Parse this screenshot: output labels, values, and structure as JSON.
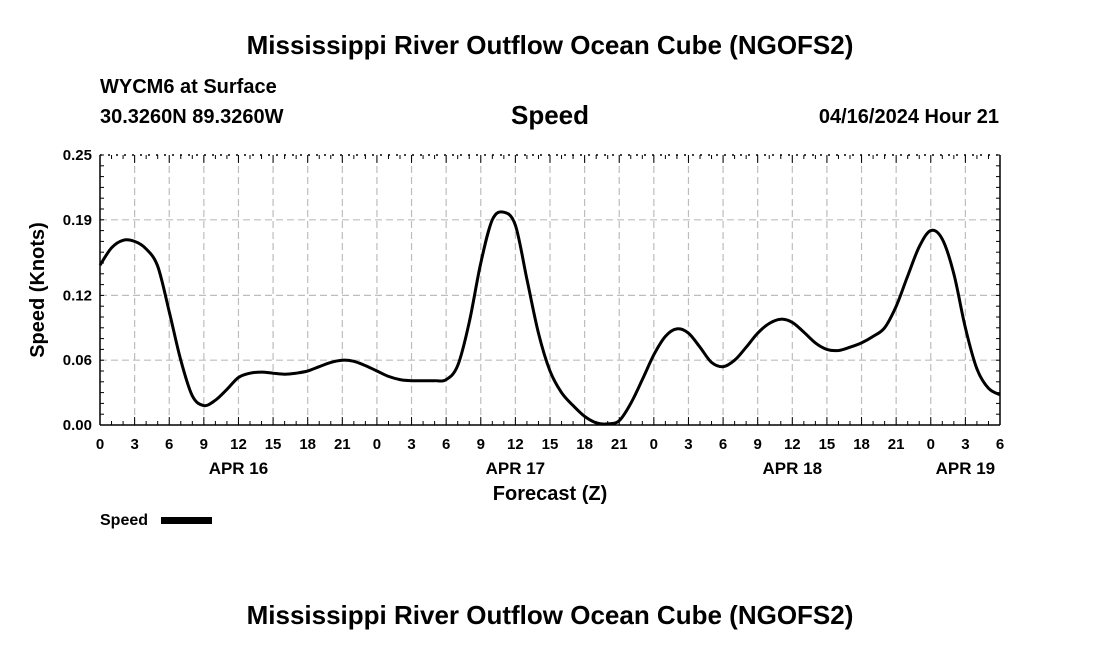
{
  "header": {
    "title": "Mississippi River Outflow Ocean Cube (NGOFS2)",
    "station": "WYCM6 at Surface",
    "coords": "30.3260N  89.3260W",
    "datetime": "04/16/2024 Hour 21"
  },
  "footer": {
    "title": "Mississippi River Outflow Ocean Cube (NGOFS2)"
  },
  "chart_data": {
    "type": "line",
    "title": "Speed",
    "xlabel": "Forecast (Z)",
    "ylabel": "Speed (Knots)",
    "xlim": [
      0,
      78
    ],
    "ylim": [
      0,
      0.25
    ],
    "yticks": [
      0.0,
      0.06,
      0.12,
      0.19,
      0.25
    ],
    "ytick_labels": [
      "0.00",
      "0.06",
      "0.12",
      "0.19",
      "0.25"
    ],
    "xticks": [
      0,
      3,
      6,
      9,
      12,
      15,
      18,
      21,
      24,
      27,
      30,
      33,
      36,
      39,
      42,
      45,
      48,
      51,
      54,
      57,
      60,
      63,
      66,
      69,
      72,
      75,
      78
    ],
    "xtick_labels": [
      "0",
      "3",
      "6",
      "9",
      "12",
      "15",
      "18",
      "21",
      "0",
      "3",
      "6",
      "9",
      "12",
      "15",
      "18",
      "21",
      "0",
      "3",
      "6",
      "9",
      "12",
      "15",
      "18",
      "21",
      "0",
      "3",
      "6"
    ],
    "date_labels": [
      {
        "x": 12,
        "label": "APR 16"
      },
      {
        "x": 36,
        "label": "APR 17"
      },
      {
        "x": 60,
        "label": "APR 18"
      },
      {
        "x": 75,
        "label": "APR 19"
      }
    ],
    "grid": true,
    "legend": "bottom-left",
    "series": [
      {
        "name": "Speed",
        "color": "#000000",
        "x": [
          0,
          1,
          2,
          3,
          4,
          5,
          6,
          7,
          8,
          9,
          10,
          11,
          12,
          13,
          14,
          15,
          16,
          17,
          18,
          19,
          20,
          21,
          22,
          23,
          24,
          25,
          26,
          27,
          28,
          29,
          30,
          31,
          32,
          33,
          34,
          35,
          36,
          37,
          38,
          39,
          40,
          41,
          42,
          43,
          44,
          45,
          46,
          47,
          48,
          49,
          50,
          51,
          52,
          53,
          54,
          55,
          56,
          57,
          58,
          59,
          60,
          61,
          62,
          63,
          64,
          65,
          66,
          67,
          68,
          69,
          70,
          71,
          72,
          73,
          74,
          75,
          76,
          77,
          78
        ],
        "values": [
          0.148,
          0.164,
          0.171,
          0.17,
          0.163,
          0.147,
          0.105,
          0.06,
          0.027,
          0.018,
          0.023,
          0.033,
          0.044,
          0.048,
          0.049,
          0.048,
          0.047,
          0.048,
          0.05,
          0.054,
          0.058,
          0.06,
          0.059,
          0.055,
          0.05,
          0.045,
          0.042,
          0.041,
          0.041,
          0.041,
          0.042,
          0.055,
          0.095,
          0.15,
          0.19,
          0.197,
          0.185,
          0.135,
          0.085,
          0.05,
          0.03,
          0.018,
          0.008,
          0.002,
          0.001,
          0.004,
          0.02,
          0.042,
          0.065,
          0.082,
          0.089,
          0.085,
          0.072,
          0.058,
          0.054,
          0.06,
          0.072,
          0.085,
          0.094,
          0.098,
          0.095,
          0.086,
          0.076,
          0.07,
          0.069,
          0.072,
          0.076,
          0.082,
          0.09,
          0.11,
          0.138,
          0.165,
          0.18,
          0.172,
          0.14,
          0.09,
          0.052,
          0.034,
          0.028
        ]
      }
    ]
  }
}
